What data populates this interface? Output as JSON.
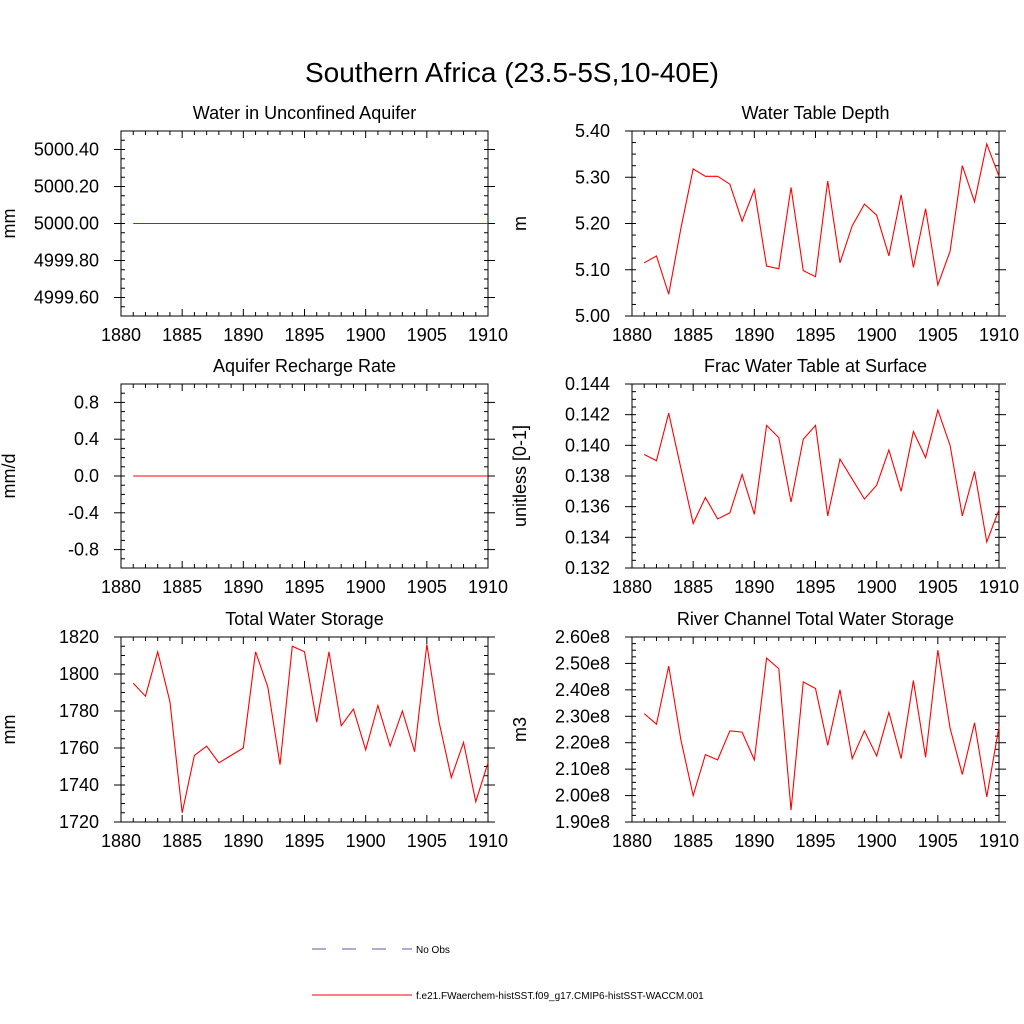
{
  "figure": {
    "title": "Southern Africa (23.5-5S,10-40E)"
  },
  "legend": {
    "obs_label": "No Obs",
    "obs_color": "#5a5aa8",
    "model_label": "f.e21.FWaerchem-histSST.f09_g17.CMIP6-histSST-WACCM.001",
    "model_color": "#ff0000"
  },
  "chart_data": [
    {
      "type": "line",
      "title": "Water in Unconfined Aquifer",
      "xlabel": "",
      "ylabel": "mm",
      "xlim": [
        1880,
        1910
      ],
      "xticks": [
        1880,
        1885,
        1890,
        1895,
        1900,
        1905,
        1910
      ],
      "ylim": [
        4999.5,
        5000.5
      ],
      "yticks": [
        4999.6,
        4999.8,
        5000.0,
        5000.2,
        5000.4
      ],
      "ytick_labels": [
        "4999.60",
        "4999.80",
        "5000.00",
        "5000.20",
        "5000.40"
      ],
      "x": [
        1881,
        1882,
        1883,
        1884,
        1885,
        1886,
        1887,
        1888,
        1889,
        1890,
        1891,
        1892,
        1893,
        1894,
        1895,
        1896,
        1897,
        1898,
        1899,
        1900,
        1901,
        1902,
        1903,
        1904,
        1905,
        1906,
        1907,
        1908,
        1909,
        1910
      ],
      "series": [
        {
          "values": [
            5000.0,
            5000.0,
            5000.0,
            5000.0,
            5000.0,
            5000.0,
            5000.0,
            5000.0,
            5000.0,
            5000.0,
            5000.0,
            5000.0,
            5000.0,
            5000.0,
            5000.0,
            5000.0,
            5000.0,
            5000.0,
            5000.0,
            5000.0,
            5000.0,
            5000.0,
            5000.0,
            5000.0,
            5000.0,
            5000.0,
            5000.0,
            5000.0,
            5000.0,
            5000.0
          ]
        }
      ]
    },
    {
      "type": "line",
      "title": "Water Table Depth",
      "xlabel": "",
      "ylabel": "m",
      "xlim": [
        1880,
        1910
      ],
      "xticks": [
        1880,
        1885,
        1890,
        1895,
        1900,
        1905,
        1910
      ],
      "ylim": [
        5.0,
        5.4
      ],
      "yticks": [
        5.0,
        5.1,
        5.2,
        5.3,
        5.4
      ],
      "ytick_labels": [
        "5.00",
        "5.10",
        "5.20",
        "5.30",
        "5.40"
      ],
      "x": [
        1881,
        1882,
        1883,
        1884,
        1885,
        1886,
        1887,
        1888,
        1889,
        1890,
        1891,
        1892,
        1893,
        1894,
        1895,
        1896,
        1897,
        1898,
        1899,
        1900,
        1901,
        1902,
        1903,
        1904,
        1905,
        1906,
        1907,
        1908,
        1909,
        1910
      ],
      "series": [
        {
          "values": [
            5.115,
            5.13,
            5.047,
            5.19,
            5.318,
            5.302,
            5.302,
            5.285,
            5.205,
            5.273,
            5.108,
            5.102,
            5.278,
            5.098,
            5.085,
            5.292,
            5.115,
            5.195,
            5.242,
            5.218,
            5.13,
            5.262,
            5.105,
            5.232,
            5.067,
            5.14,
            5.325,
            5.247,
            5.372,
            5.302
          ]
        }
      ]
    },
    {
      "type": "line",
      "title": "Aquifer Recharge Rate",
      "xlabel": "",
      "ylabel": "mm/d",
      "xlim": [
        1880,
        1910
      ],
      "xticks": [
        1880,
        1885,
        1890,
        1895,
        1900,
        1905,
        1910
      ],
      "ylim": [
        -1.0,
        1.0
      ],
      "yticks": [
        -0.8,
        -0.4,
        0.0,
        0.4,
        0.8
      ],
      "ytick_labels": [
        "-0.8",
        "-0.4",
        "0.0",
        "0.4",
        "0.8"
      ],
      "x": [
        1881,
        1882,
        1883,
        1884,
        1885,
        1886,
        1887,
        1888,
        1889,
        1890,
        1891,
        1892,
        1893,
        1894,
        1895,
        1896,
        1897,
        1898,
        1899,
        1900,
        1901,
        1902,
        1903,
        1904,
        1905,
        1906,
        1907,
        1908,
        1909,
        1910
      ],
      "series": [
        {
          "values": [
            0.0,
            0.0,
            0.0,
            0.0,
            0.0,
            0.0,
            0.0,
            0.0,
            0.0,
            0.0,
            0.0,
            0.0,
            0.0,
            0.0,
            0.0,
            0.0,
            0.0,
            0.0,
            0.0,
            0.0,
            0.0,
            0.0,
            0.0,
            0.0,
            0.0,
            0.0,
            0.0,
            0.0,
            0.0,
            0.0
          ]
        }
      ]
    },
    {
      "type": "line",
      "title": "Frac Water Table at Surface",
      "xlabel": "",
      "ylabel": "unitless [0-1]",
      "xlim": [
        1880,
        1910
      ],
      "xticks": [
        1880,
        1885,
        1890,
        1895,
        1900,
        1905,
        1910
      ],
      "ylim": [
        0.132,
        0.144
      ],
      "yticks": [
        0.132,
        0.134,
        0.136,
        0.138,
        0.14,
        0.142,
        0.144
      ],
      "ytick_labels": [
        "0.132",
        "0.134",
        "0.136",
        "0.138",
        "0.140",
        "0.142",
        "0.144"
      ],
      "x": [
        1881,
        1882,
        1883,
        1884,
        1885,
        1886,
        1887,
        1888,
        1889,
        1890,
        1891,
        1892,
        1893,
        1894,
        1895,
        1896,
        1897,
        1898,
        1899,
        1900,
        1901,
        1902,
        1903,
        1904,
        1905,
        1906,
        1907,
        1908,
        1909,
        1910
      ],
      "series": [
        {
          "values": [
            0.1394,
            0.139,
            0.1421,
            0.1385,
            0.1349,
            0.1366,
            0.1352,
            0.1356,
            0.1381,
            0.1355,
            0.1413,
            0.1405,
            0.1363,
            0.1404,
            0.1413,
            0.1354,
            0.1391,
            0.1378,
            0.1365,
            0.1374,
            0.1397,
            0.137,
            0.1409,
            0.1392,
            0.1423,
            0.14,
            0.1354,
            0.1383,
            0.1337,
            0.1358
          ]
        }
      ]
    },
    {
      "type": "line",
      "title": "Total Water Storage",
      "xlabel": "",
      "ylabel": "mm",
      "xlim": [
        1880,
        1910
      ],
      "xticks": [
        1880,
        1885,
        1890,
        1895,
        1900,
        1905,
        1910
      ],
      "ylim": [
        1720,
        1820
      ],
      "yticks": [
        1720,
        1740,
        1760,
        1780,
        1800,
        1820
      ],
      "ytick_labels": [
        "1720",
        "1740",
        "1760",
        "1780",
        "1800",
        "1820"
      ],
      "x": [
        1881,
        1882,
        1883,
        1884,
        1885,
        1886,
        1887,
        1888,
        1889,
        1890,
        1891,
        1892,
        1893,
        1894,
        1895,
        1896,
        1897,
        1898,
        1899,
        1900,
        1901,
        1902,
        1903,
        1904,
        1905,
        1906,
        1907,
        1908,
        1909,
        1910
      ],
      "series": [
        {
          "values": [
            1795,
            1788,
            1812,
            1785,
            1725,
            1756,
            1761,
            1752,
            1756,
            1760,
            1812,
            1793,
            1751,
            1815,
            1812,
            1774,
            1812,
            1772,
            1781,
            1759,
            1783,
            1761,
            1780,
            1758,
            1816,
            1774,
            1744,
            1763,
            1731,
            1752
          ]
        }
      ]
    },
    {
      "type": "line",
      "title": "River Channel Total Water Storage",
      "xlabel": "",
      "ylabel": "m3",
      "xlim": [
        1880,
        1910
      ],
      "xticks": [
        1880,
        1885,
        1890,
        1895,
        1900,
        1905,
        1910
      ],
      "ylim": [
        190000000,
        260000000
      ],
      "yticks": [
        190000000,
        200000000,
        210000000,
        220000000,
        230000000,
        240000000,
        250000000,
        260000000
      ],
      "ytick_labels": [
        "1.90e8",
        "2.00e8",
        "2.10e8",
        "2.20e8",
        "2.30e8",
        "2.40e8",
        "2.50e8",
        "2.60e8"
      ],
      "x": [
        1881,
        1882,
        1883,
        1884,
        1885,
        1886,
        1887,
        1888,
        1889,
        1890,
        1891,
        1892,
        1893,
        1894,
        1895,
        1896,
        1897,
        1898,
        1899,
        1900,
        1901,
        1902,
        1903,
        1904,
        1905,
        1906,
        1907,
        1908,
        1909,
        1910
      ],
      "series": [
        {
          "values": [
            231000000,
            227000000,
            249000000,
            221000000,
            200000000,
            215500000,
            213500000,
            224500000,
            224000000,
            213500000,
            252000000,
            248000000,
            194500000,
            243000000,
            240500000,
            219000000,
            240000000,
            214000000,
            224500000,
            215000000,
            231500000,
            214000000,
            243500000,
            214500000,
            255000000,
            225500000,
            208000000,
            227500000,
            199500000,
            226000000
          ]
        }
      ]
    }
  ]
}
